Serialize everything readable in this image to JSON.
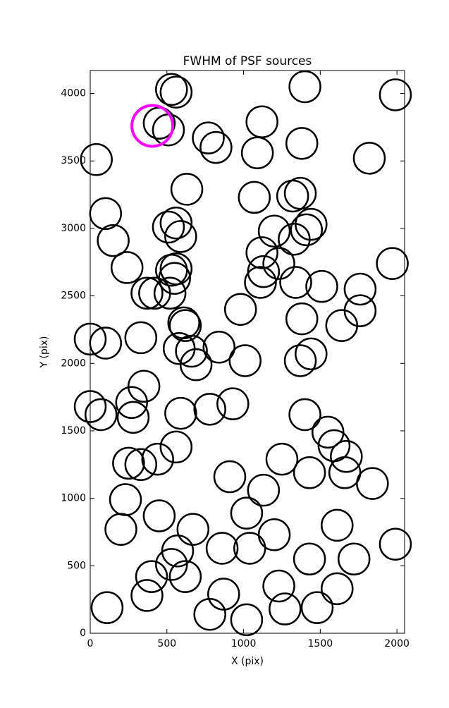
{
  "chart_data": {
    "type": "scatter",
    "title": "FWHM of PSF sources",
    "x_label": "X (pix)",
    "y_label": "Y (pix)",
    "xlim": [
      0,
      2050
    ],
    "ylim": [
      0,
      4170
    ],
    "xticks": [
      0,
      500,
      1000,
      1500,
      2000
    ],
    "yticks": [
      0,
      500,
      1000,
      1500,
      2000,
      2500,
      3000,
      3500,
      4000
    ],
    "grid": false,
    "series": [
      {
        "color": "#000000",
        "x": [
          530,
          560,
          1400,
          1990,
          450,
          510,
          770,
          820,
          1120,
          1090,
          1380,
          1820,
          40,
          630,
          1070,
          1320,
          1370,
          100,
          150,
          510,
          560,
          590,
          1200,
          1330,
          1410,
          1440,
          1120,
          1230,
          240,
          530,
          560,
          550,
          1130,
          1110,
          1340,
          1510,
          1760,
          1970,
          370,
          420,
          520,
          980,
          1760,
          1380,
          1640,
          610,
          620,
          0,
          100,
          330,
          580,
          660,
          690,
          840,
          1010,
          1370,
          1440,
          350,
          270,
          280,
          0,
          70,
          590,
          780,
          930,
          1400,
          1550,
          1590,
          1670,
          1660,
          1840,
          1250,
          1430,
          560,
          440,
          330,
          250,
          230,
          910,
          1130,
          1020,
          450,
          670,
          200,
          1200,
          1610,
          1990,
          860,
          1040,
          570,
          530,
          620,
          400,
          1430,
          1720,
          1230,
          1610,
          870,
          370,
          110,
          780,
          1020,
          1270,
          1480
        ],
        "y": [
          4030,
          4010,
          4050,
          3990,
          3780,
          3730,
          3670,
          3600,
          3790,
          3560,
          3630,
          3520,
          3510,
          3290,
          3230,
          3240,
          3260,
          3110,
          2910,
          3010,
          3040,
          2940,
          2980,
          2920,
          2990,
          3030,
          2820,
          2740,
          2710,
          2690,
          2700,
          2630,
          2680,
          2600,
          2600,
          2570,
          2550,
          2740,
          2520,
          2520,
          2520,
          2400,
          2390,
          2330,
          2280,
          2300,
          2280,
          2180,
          2150,
          2190,
          2110,
          2090,
          1990,
          2120,
          2020,
          2020,
          2070,
          1830,
          1710,
          1600,
          1680,
          1620,
          1630,
          1660,
          1700,
          1620,
          1490,
          1390,
          1310,
          1190,
          1110,
          1290,
          1190,
          1380,
          1290,
          1250,
          1260,
          990,
          1160,
          1060,
          890,
          870,
          770,
          770,
          730,
          800,
          660,
          630,
          630,
          610,
          510,
          420,
          420,
          550,
          550,
          350,
          330,
          290,
          280,
          190,
          140,
          100,
          180,
          190
        ]
      },
      {
        "color": "#ff00ff",
        "x": [
          405
        ],
        "y": [
          3760
        ]
      }
    ]
  }
}
